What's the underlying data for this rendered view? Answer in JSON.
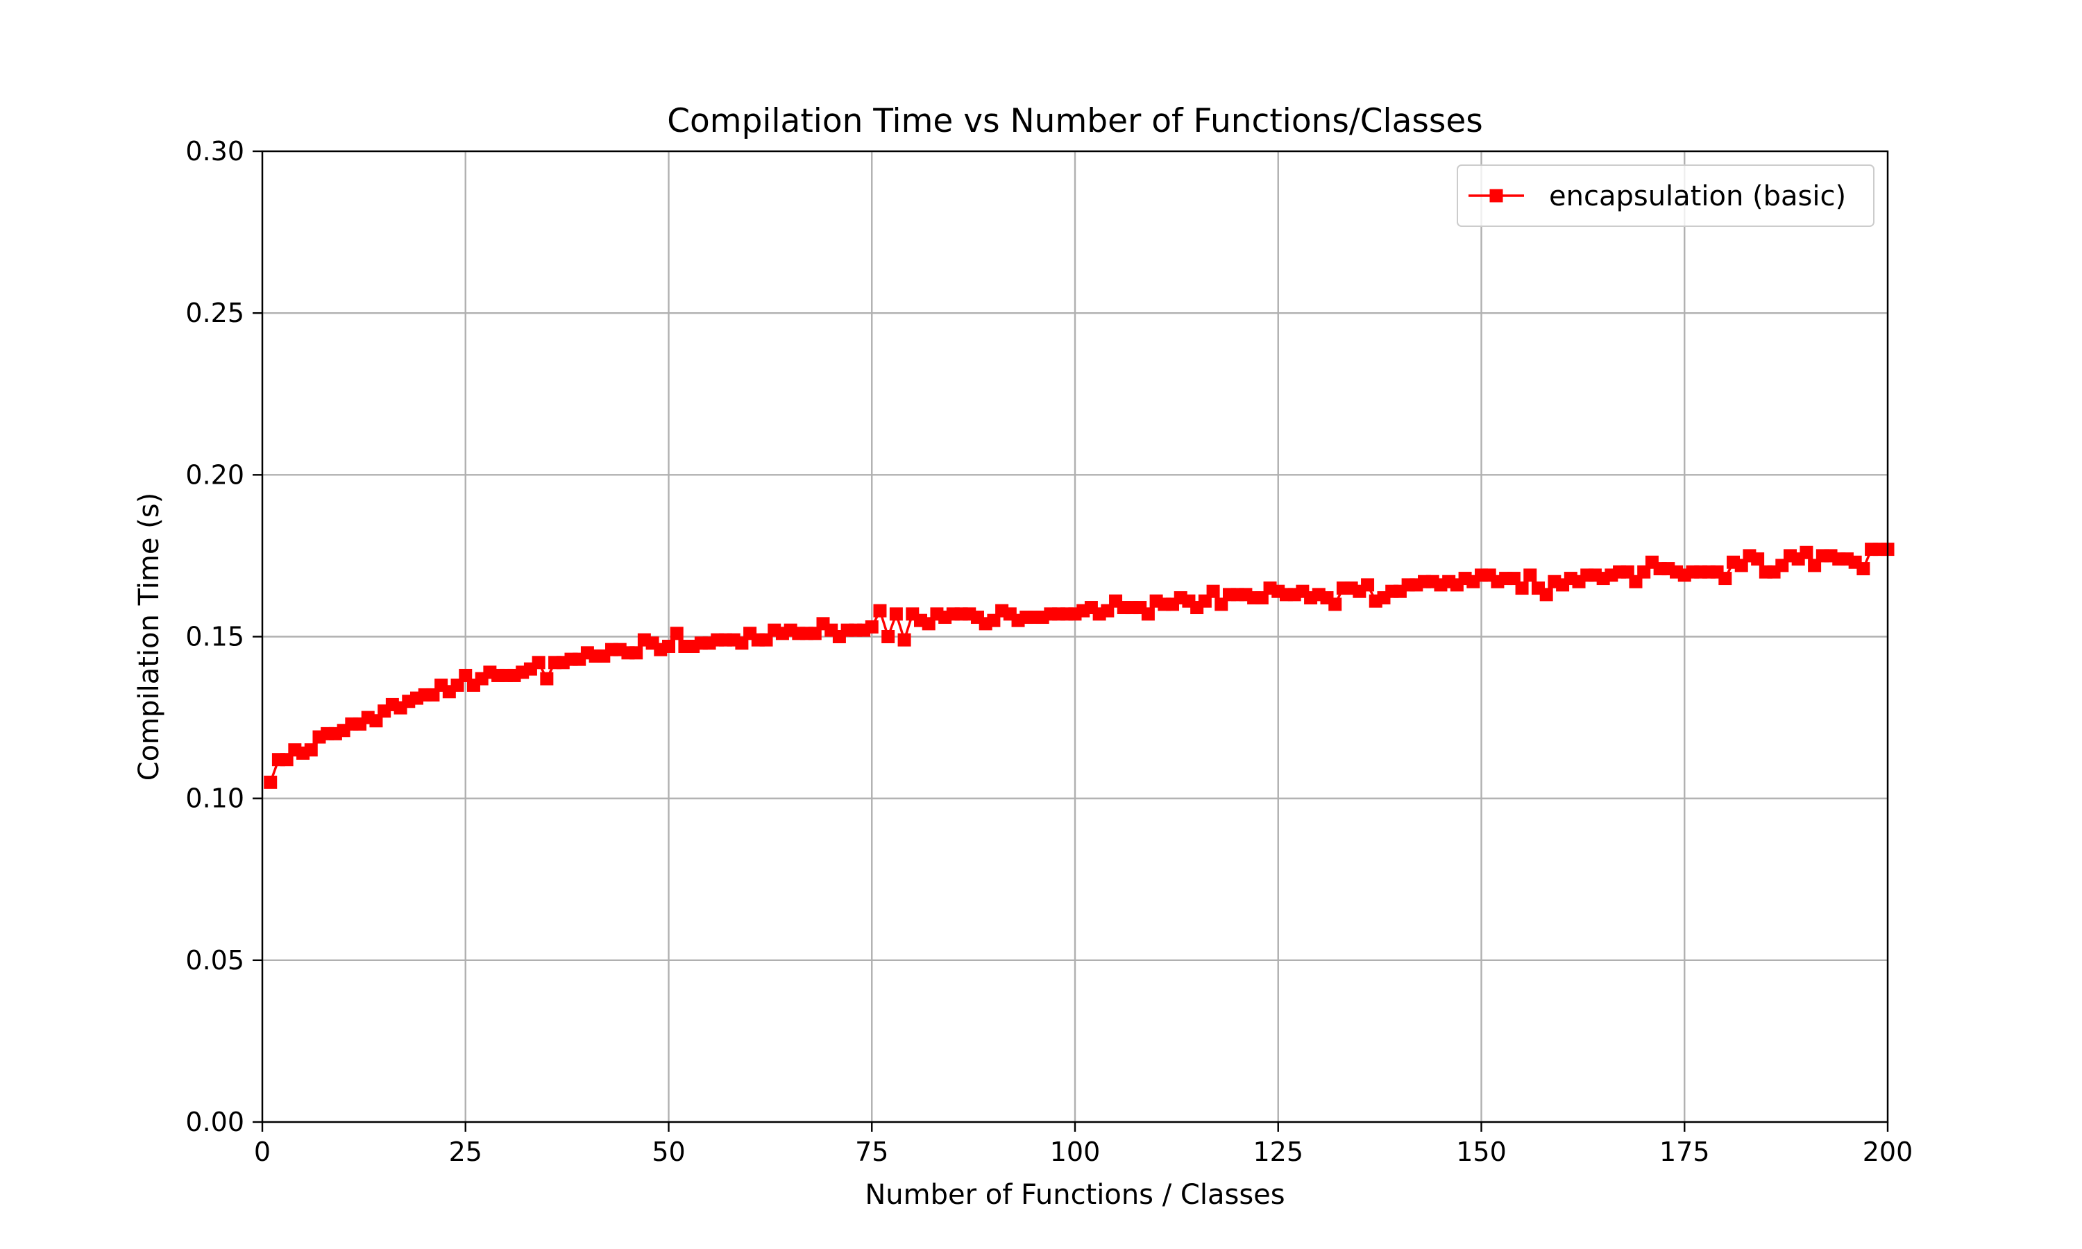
{
  "chart_data": {
    "type": "line",
    "title": "Compilation Time vs Number of Functions/Classes",
    "xlabel": "Number of Functions / Classes",
    "ylabel": "Compilation Time (s)",
    "xlim": [
      0,
      200
    ],
    "ylim": [
      0,
      0.3
    ],
    "xticks": [
      0,
      25,
      50,
      75,
      100,
      125,
      150,
      175,
      200
    ],
    "xtick_labels": [
      "0",
      "25",
      "50",
      "75",
      "100",
      "125",
      "150",
      "175",
      "200"
    ],
    "yticks": [
      0,
      0.05,
      0.1,
      0.15,
      0.2,
      0.25,
      0.3
    ],
    "ytick_labels": [
      "0.00",
      "0.05",
      "0.10",
      "0.15",
      "0.20",
      "0.25",
      "0.30"
    ],
    "grid": true,
    "legend_position": "top-right",
    "series": [
      {
        "name": "encapsulation (basic)",
        "color": "#ff0000",
        "marker": "square",
        "x": [
          1,
          2,
          3,
          4,
          5,
          6,
          7,
          8,
          9,
          10,
          11,
          12,
          13,
          14,
          15,
          16,
          17,
          18,
          19,
          20,
          21,
          22,
          23,
          24,
          25,
          26,
          27,
          28,
          29,
          30,
          31,
          32,
          33,
          34,
          35,
          36,
          37,
          38,
          39,
          40,
          41,
          42,
          43,
          44,
          45,
          46,
          47,
          48,
          49,
          50,
          51,
          52,
          53,
          54,
          55,
          56,
          57,
          58,
          59,
          60,
          61,
          62,
          63,
          64,
          65,
          66,
          67,
          68,
          69,
          70,
          71,
          72,
          73,
          74,
          75,
          76,
          77,
          78,
          79,
          80,
          81,
          82,
          83,
          84,
          85,
          86,
          87,
          88,
          89,
          90,
          91,
          92,
          93,
          94,
          95,
          96,
          97,
          98,
          99,
          100,
          101,
          102,
          103,
          104,
          105,
          106,
          107,
          108,
          109,
          110,
          111,
          112,
          113,
          114,
          115,
          116,
          117,
          118,
          119,
          120,
          121,
          122,
          123,
          124,
          125,
          126,
          127,
          128,
          129,
          130,
          131,
          132,
          133,
          134,
          135,
          136,
          137,
          138,
          139,
          140,
          141,
          142,
          143,
          144,
          145,
          146,
          147,
          148,
          149,
          150,
          151,
          152,
          153,
          154,
          155,
          156,
          157,
          158,
          159,
          160,
          161,
          162,
          163,
          164,
          165,
          166,
          167,
          168,
          169,
          170,
          171,
          172,
          173,
          174,
          175,
          176,
          177,
          178,
          179,
          180,
          181,
          182,
          183,
          184,
          185,
          186,
          187,
          188,
          189,
          190,
          191,
          192,
          193,
          194,
          195,
          196,
          197,
          198,
          199,
          200
        ],
        "y": [
          0.105,
          0.112,
          0.112,
          0.115,
          0.114,
          0.115,
          0.119,
          0.12,
          0.12,
          0.121,
          0.123,
          0.123,
          0.125,
          0.124,
          0.127,
          0.129,
          0.128,
          0.13,
          0.131,
          0.132,
          0.132,
          0.135,
          0.133,
          0.135,
          0.138,
          0.135,
          0.137,
          0.139,
          0.138,
          0.138,
          0.138,
          0.139,
          0.14,
          0.142,
          0.137,
          0.142,
          0.142,
          0.143,
          0.143,
          0.145,
          0.144,
          0.144,
          0.146,
          0.146,
          0.145,
          0.145,
          0.149,
          0.148,
          0.146,
          0.147,
          0.151,
          0.147,
          0.147,
          0.148,
          0.148,
          0.149,
          0.149,
          0.149,
          0.148,
          0.151,
          0.149,
          0.149,
          0.152,
          0.151,
          0.152,
          0.151,
          0.151,
          0.151,
          0.154,
          0.152,
          0.15,
          0.152,
          0.152,
          0.152,
          0.153,
          0.158,
          0.15,
          0.157,
          0.149,
          0.157,
          0.155,
          0.154,
          0.157,
          0.156,
          0.157,
          0.157,
          0.157,
          0.156,
          0.154,
          0.155,
          0.158,
          0.157,
          0.155,
          0.156,
          0.156,
          0.156,
          0.157,
          0.157,
          0.157,
          0.157,
          0.158,
          0.159,
          0.157,
          0.158,
          0.161,
          0.159,
          0.159,
          0.159,
          0.157,
          0.161,
          0.16,
          0.16,
          0.162,
          0.161,
          0.159,
          0.161,
          0.164,
          0.16,
          0.163,
          0.163,
          0.163,
          0.162,
          0.162,
          0.165,
          0.164,
          0.163,
          0.163,
          0.164,
          0.162,
          0.163,
          0.162,
          0.16,
          0.165,
          0.165,
          0.164,
          0.166,
          0.161,
          0.162,
          0.164,
          0.164,
          0.166,
          0.166,
          0.167,
          0.167,
          0.166,
          0.167,
          0.166,
          0.168,
          0.167,
          0.169,
          0.169,
          0.167,
          0.168,
          0.168,
          0.165,
          0.169,
          0.165,
          0.163,
          0.167,
          0.166,
          0.168,
          0.167,
          0.169,
          0.169,
          0.168,
          0.169,
          0.17,
          0.17,
          0.167,
          0.17,
          0.173,
          0.171,
          0.171,
          0.17,
          0.169,
          0.17,
          0.17,
          0.17,
          0.17,
          0.168,
          0.173,
          0.172,
          0.175,
          0.174,
          0.17,
          0.17,
          0.172,
          0.175,
          0.174,
          0.176,
          0.172,
          0.175,
          0.175,
          0.174,
          0.174,
          0.173,
          0.171,
          0.177,
          0.177,
          0.177
        ]
      }
    ]
  }
}
